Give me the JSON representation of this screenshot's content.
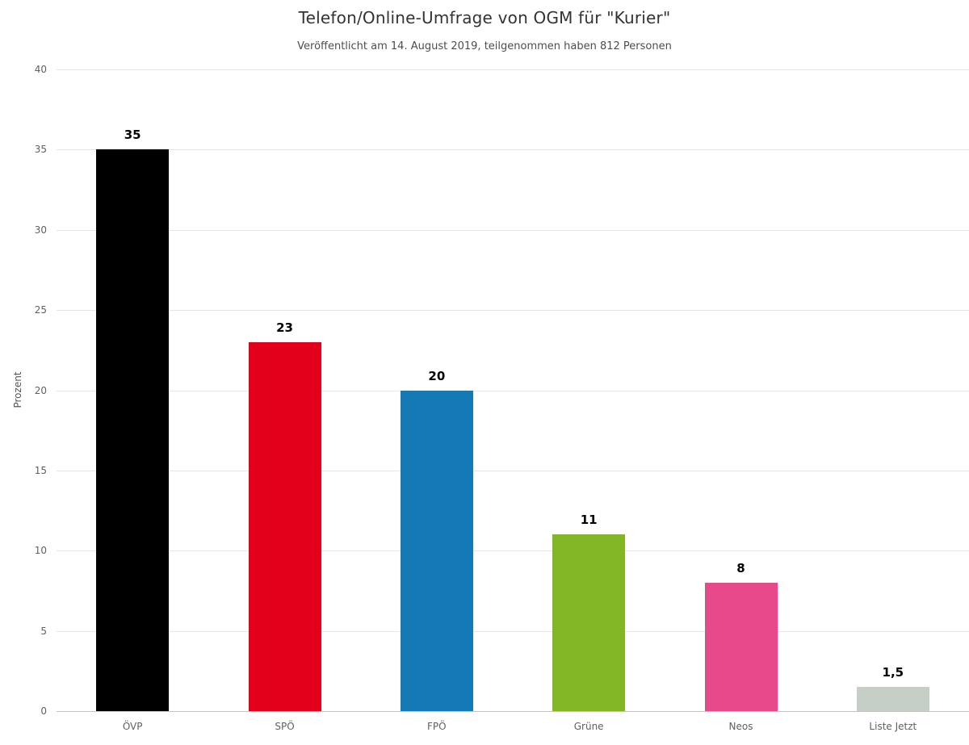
{
  "header": {
    "title": "Telefon/Online-Umfrage von OGM für \"Kurier\"",
    "subtitle": "Veröffentlicht am 14. August 2019, teilgenommen haben 812 Personen"
  },
  "chart_data": {
    "type": "bar",
    "title": "Telefon/Online-Umfrage von OGM für \"Kurier\"",
    "subtitle": "Veröffentlicht am 14. August 2019, teilgenommen haben 812 Personen",
    "categories": [
      "ÖVP",
      "SPÖ",
      "FPÖ",
      "Grüne",
      "Neos",
      "Liste Jetzt"
    ],
    "values": [
      35,
      23,
      20,
      11,
      8,
      1.5
    ],
    "value_labels": [
      "35",
      "23",
      "20",
      "11",
      "8",
      "1,5"
    ],
    "colors": [
      "#000000",
      "#e2001a",
      "#1579b5",
      "#82b624",
      "#e8498b",
      "#c5cfc6"
    ],
    "xlabel": "",
    "ylabel": "Prozent",
    "ylim": [
      0,
      40
    ],
    "ytick_step": 5,
    "ytick_labels": [
      "0",
      "5",
      "10",
      "15",
      "20",
      "25",
      "30",
      "35",
      "40"
    ],
    "grid": true,
    "legend": "none",
    "background": "#ffffff"
  }
}
